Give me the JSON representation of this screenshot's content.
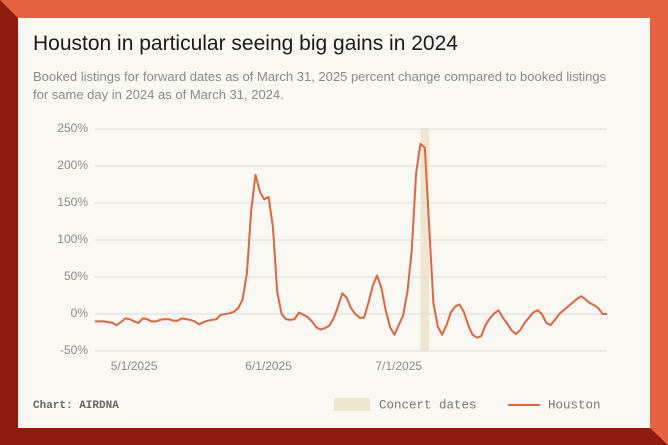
{
  "chart_data": {
    "type": "line",
    "title": "Houston in particular seeing big gains in 2024",
    "subtitle": "Booked listings for forward dates as of March 31, 2025 percent change compared to booked listings for same day in 2024 as of March 31, 2024.",
    "source": "Chart: AIRDNA",
    "x": [
      "4/22/2025",
      "4/23/2025",
      "4/24/2025",
      "4/25/2025",
      "4/26/2025",
      "4/27/2025",
      "4/28/2025",
      "4/29/2025",
      "4/30/2025",
      "5/1/2025",
      "5/2/2025",
      "5/3/2025",
      "5/4/2025",
      "5/5/2025",
      "5/6/2025",
      "5/7/2025",
      "5/8/2025",
      "5/9/2025",
      "5/10/2025",
      "5/11/2025",
      "5/12/2025",
      "5/13/2025",
      "5/14/2025",
      "5/15/2025",
      "5/16/2025",
      "5/17/2025",
      "5/18/2025",
      "5/19/2025",
      "5/20/2025",
      "5/21/2025",
      "5/22/2025",
      "5/23/2025",
      "5/24/2025",
      "5/25/2025",
      "5/26/2025",
      "5/27/2025",
      "5/28/2025",
      "5/29/2025",
      "5/30/2025",
      "5/31/2025",
      "6/1/2025",
      "6/2/2025",
      "6/3/2025",
      "6/4/2025",
      "6/5/2025",
      "6/6/2025",
      "6/7/2025",
      "6/8/2025",
      "6/9/2025",
      "6/10/2025",
      "6/11/2025",
      "6/12/2025",
      "6/13/2025",
      "6/14/2025",
      "6/15/2025",
      "6/16/2025",
      "6/17/2025",
      "6/18/2025",
      "6/19/2025",
      "6/20/2025",
      "6/21/2025",
      "6/22/2025",
      "6/23/2025",
      "6/24/2025",
      "6/25/2025",
      "6/26/2025",
      "6/27/2025",
      "6/28/2025",
      "6/29/2025",
      "6/30/2025",
      "7/1/2025",
      "7/2/2025",
      "7/3/2025",
      "7/4/2025",
      "7/5/2025",
      "7/6/2025",
      "7/7/2025",
      "7/8/2025",
      "7/9/2025",
      "7/10/2025",
      "7/11/2025",
      "7/12/2025",
      "7/13/2025",
      "7/14/2025",
      "7/15/2025",
      "7/16/2025",
      "7/17/2025",
      "7/18/2025",
      "7/19/2025",
      "7/20/2025",
      "7/21/2025",
      "7/22/2025",
      "7/23/2025",
      "7/24/2025",
      "7/25/2025",
      "7/26/2025",
      "7/27/2025",
      "7/28/2025",
      "7/29/2025",
      "7/30/2025",
      "7/31/2025",
      "8/1/2025",
      "8/2/2025",
      "8/3/2025",
      "8/4/2025",
      "8/5/2025",
      "8/6/2025",
      "8/7/2025",
      "8/8/2025",
      "8/9/2025",
      "8/10/2025",
      "8/11/2025",
      "8/12/2025",
      "8/13/2025",
      "8/14/2025",
      "8/15/2025",
      "8/16/2025",
      "8/17/2025",
      "8/18/2025"
    ],
    "series": [
      {
        "name": "Houston",
        "color": "#e0643f",
        "values": [
          -10,
          -10,
          -10,
          -11,
          -12,
          -15,
          -11,
          -6,
          -7,
          -10,
          -12,
          -6,
          -7,
          -10,
          -10,
          -8,
          -7,
          -7,
          -9,
          -9,
          -6,
          -7,
          -8,
          -10,
          -14,
          -11,
          -9,
          -8,
          -7,
          -1,
          0,
          1,
          3,
          8,
          19,
          55,
          140,
          188,
          165,
          155,
          158,
          118,
          30,
          0,
          -7,
          -8,
          -7,
          2,
          -1,
          -4,
          -10,
          -18,
          -21,
          -19,
          -16,
          -6,
          10,
          28,
          22,
          8,
          0,
          -5,
          -5,
          15,
          38,
          52,
          35,
          5,
          -18,
          -28,
          -15,
          -2,
          30,
          85,
          190,
          230,
          225,
          120,
          15,
          -17,
          -28,
          -15,
          2,
          10,
          13,
          3,
          -15,
          -28,
          -32,
          -30,
          -15,
          -6,
          1,
          5,
          -5,
          -13,
          -22,
          -27,
          -22,
          -12,
          -5,
          2,
          5,
          0,
          -12,
          -15,
          -8,
          0,
          5,
          10,
          15,
          20,
          24,
          20,
          15,
          12,
          8,
          0,
          0
        ]
      }
    ],
    "highlight": {
      "label": "Concert dates",
      "start": "7/6/2025",
      "end": "7/8/2025",
      "color": "#efe6d0"
    },
    "xlim": [
      "4/22/2025",
      "8/18/2025"
    ],
    "xticks": [
      "5/1/2025",
      "6/1/2025",
      "7/1/2025"
    ],
    "ylim": [
      -50,
      250
    ],
    "yticks": [
      {
        "value": -50,
        "label": "-50%"
      },
      {
        "value": 0,
        "label": "0%"
      },
      {
        "value": 50,
        "label": "50%"
      },
      {
        "value": 100,
        "label": "100%"
      },
      {
        "value": 150,
        "label": "150%"
      },
      {
        "value": 200,
        "label": "200%"
      },
      {
        "value": 250,
        "label": "250%"
      }
    ],
    "grid": true
  }
}
